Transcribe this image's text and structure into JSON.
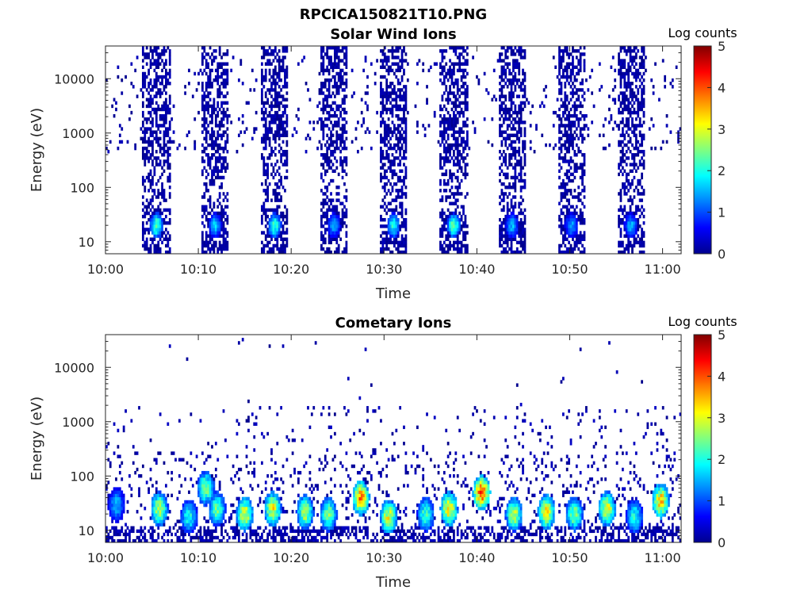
{
  "figure_title": "RPCICA150821T10.PNG",
  "chart_data": [
    {
      "type": "heatmap",
      "title": "Solar Wind Ions",
      "xlabel": "Time",
      "ylabel": "Energy (eV)",
      "y_scale": "log",
      "xlim": [
        "10:00",
        "11:02"
      ],
      "ylim": [
        6,
        40000
      ],
      "x_ticks": [
        "10:00",
        "10:10",
        "10:20",
        "10:30",
        "10:40",
        "10:50",
        "11:00"
      ],
      "y_ticks": [
        "10",
        "100",
        "1000",
        "10000"
      ],
      "colorbar": {
        "label": "Log counts",
        "range": [
          0,
          5
        ],
        "ticks": [
          "0",
          "1",
          "2",
          "3",
          "4",
          "5"
        ]
      },
      "scan_center_minutes": [
        5.5,
        11.8,
        18.2,
        24.6,
        31,
        37.5,
        43.8,
        50.2,
        56.6
      ],
      "bursts": [
        {
          "t": 5.5,
          "e": 20,
          "level": 2.3
        },
        {
          "t": 11.8,
          "e": 20,
          "level": 1.6
        },
        {
          "t": 18.2,
          "e": 20,
          "level": 2.2
        },
        {
          "t": 24.6,
          "e": 20,
          "level": 1.4
        },
        {
          "t": 31,
          "e": 20,
          "level": 2.0
        },
        {
          "t": 37.5,
          "e": 20,
          "level": 2.3
        },
        {
          "t": 43.8,
          "e": 20,
          "level": 1.5
        },
        {
          "t": 50.2,
          "e": 20,
          "level": 1.4
        },
        {
          "t": 56.6,
          "e": 20,
          "level": 1.5
        }
      ]
    },
    {
      "type": "heatmap",
      "title": "Cometary Ions",
      "xlabel": "Time",
      "ylabel": "Energy (eV)",
      "y_scale": "log",
      "xlim": [
        "10:00",
        "11:02"
      ],
      "ylim": [
        6,
        40000
      ],
      "x_ticks": [
        "10:00",
        "10:10",
        "10:20",
        "10:30",
        "10:40",
        "10:50",
        "11:00"
      ],
      "y_ticks": [
        "10",
        "100",
        "1000",
        "10000"
      ],
      "colorbar": {
        "label": "Log counts",
        "range": [
          0,
          5
        ],
        "ticks": [
          "0",
          "1",
          "2",
          "3",
          "4",
          "5"
        ]
      },
      "bursts": [
        {
          "t": 1.2,
          "e": 30,
          "level": 1.5
        },
        {
          "t": 5.8,
          "e": 25,
          "level": 2.8
        },
        {
          "t": 9.0,
          "e": 18,
          "level": 2.0
        },
        {
          "t": 10.8,
          "e": 60,
          "level": 2.5
        },
        {
          "t": 12.0,
          "e": 25,
          "level": 2.4
        },
        {
          "t": 15.0,
          "e": 20,
          "level": 3.0
        },
        {
          "t": 18.0,
          "e": 25,
          "level": 3.0
        },
        {
          "t": 21.5,
          "e": 22,
          "level": 2.8
        },
        {
          "t": 24.0,
          "e": 20,
          "level": 2.5
        },
        {
          "t": 27.5,
          "e": 40,
          "level": 3.6
        },
        {
          "t": 30.5,
          "e": 18,
          "level": 3.0
        },
        {
          "t": 34.5,
          "e": 20,
          "level": 2.2
        },
        {
          "t": 37.0,
          "e": 25,
          "level": 3.3
        },
        {
          "t": 40.5,
          "e": 50,
          "level": 4.0
        },
        {
          "t": 44.0,
          "e": 20,
          "level": 2.8
        },
        {
          "t": 47.5,
          "e": 22,
          "level": 3.3
        },
        {
          "t": 50.5,
          "e": 20,
          "level": 2.5
        },
        {
          "t": 54.0,
          "e": 25,
          "level": 3.0
        },
        {
          "t": 57.0,
          "e": 18,
          "level": 2.0
        },
        {
          "t": 59.8,
          "e": 35,
          "level": 3.4
        }
      ]
    }
  ]
}
